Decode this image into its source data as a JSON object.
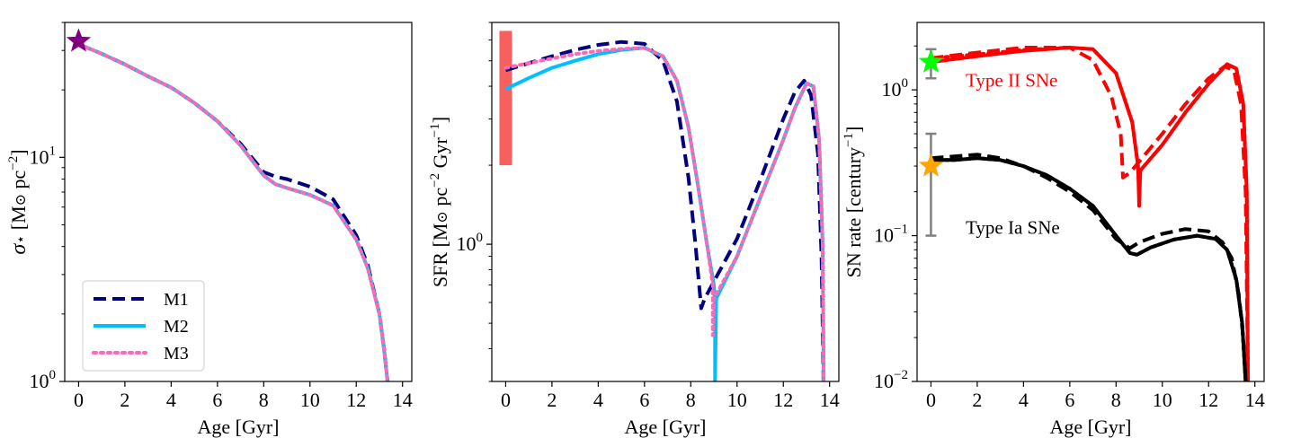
{
  "chart_data": [
    {
      "type": "line",
      "panel": "stellar-surface-density",
      "xlabel": "Age [Gyr]",
      "ylabel_parts": [
        "σ",
        "⋆",
        " [M",
        "⊙",
        " pc",
        "−2",
        "]"
      ],
      "xlim": [
        -0.6,
        14.4
      ],
      "ylim": [
        1,
        40
      ],
      "yscale": "log",
      "xticks": [
        0,
        2,
        4,
        6,
        8,
        10,
        12,
        14
      ],
      "yticks": [
        {
          "value": 1,
          "base": "10",
          "exp": "0"
        },
        {
          "value": 10,
          "base": "10",
          "exp": "1"
        }
      ],
      "legend": {
        "placement": "lower-left",
        "entries": [
          "M1",
          "M2",
          "M3"
        ]
      },
      "series": [
        {
          "name": "M1",
          "color": "#00007f",
          "style": "dashed",
          "x": [
            0,
            1,
            2,
            3,
            4,
            5,
            6,
            7,
            8,
            8.5,
            9,
            10,
            11,
            12,
            12.5,
            13,
            13.2,
            13.4
          ],
          "y": [
            32,
            29,
            26,
            23,
            20.5,
            17.5,
            14.5,
            11.5,
            8.6,
            8.2,
            8.0,
            7.4,
            6.5,
            4.5,
            3.3,
            2.0,
            1.4,
            0.9
          ]
        },
        {
          "name": "M2",
          "color": "#00bfff",
          "style": "solid",
          "x": [
            0,
            1,
            2,
            3,
            4,
            5,
            6,
            7,
            8,
            8.5,
            9,
            10,
            11,
            12,
            12.5,
            13,
            13.2,
            13.4
          ],
          "y": [
            32,
            29,
            26,
            23,
            20.5,
            17.5,
            14.5,
            11.3,
            8.3,
            7.6,
            7.3,
            6.8,
            6.1,
            4.3,
            3.2,
            2.0,
            1.4,
            0.9
          ]
        },
        {
          "name": "M3",
          "color": "#ff69b4",
          "style": "dotted",
          "x": [
            0,
            1,
            2,
            3,
            4,
            5,
            6,
            7,
            8,
            8.5,
            9,
            10,
            11,
            12,
            12.5,
            13,
            13.2,
            13.4
          ],
          "y": [
            32,
            29,
            26,
            23,
            20.5,
            17.5,
            14.5,
            11.3,
            8.3,
            7.6,
            7.3,
            6.8,
            6.1,
            4.3,
            3.2,
            2.0,
            1.4,
            0.9
          ]
        }
      ],
      "markers": [
        {
          "type": "star",
          "x": 0,
          "y": 33,
          "color": "#800080"
        }
      ]
    },
    {
      "type": "line",
      "panel": "star-formation-rate",
      "xlabel": "Age [Gyr]",
      "ylabel_parts": [
        "SFR [M",
        "⊙",
        " pc",
        "−2",
        " Gyr",
        "−1",
        "]"
      ],
      "xlim": [
        -0.6,
        14.4
      ],
      "ylim": [
        0.3,
        7.0
      ],
      "yscale": "log",
      "xticks": [
        0,
        2,
        4,
        6,
        8,
        10,
        12,
        14
      ],
      "yticks": [
        {
          "value": 1,
          "base": "10",
          "exp": "0"
        }
      ],
      "series": [
        {
          "name": "M1",
          "color": "#00007f",
          "style": "dashed",
          "x": [
            0,
            1,
            2,
            3,
            4,
            5,
            6,
            6.8,
            7.4,
            7.9,
            8.2,
            8.45,
            8.6,
            10,
            11,
            12,
            12.5,
            12.9,
            13.2,
            13.5,
            13.65,
            13.75
          ],
          "y": [
            4.6,
            4.9,
            5.2,
            5.5,
            5.75,
            5.9,
            5.8,
            5.0,
            3.5,
            1.8,
            1.0,
            0.57,
            0.62,
            1.05,
            1.75,
            3.0,
            3.8,
            4.2,
            3.7,
            2.2,
            0.9,
            0.25
          ]
        },
        {
          "name": "M2",
          "color": "#00bfff",
          "style": "solid",
          "x": [
            0,
            1,
            2,
            3,
            4,
            5,
            6,
            6.8,
            7.4,
            7.9,
            8.3,
            8.7,
            9.0,
            9.05,
            9.05,
            9.1,
            10,
            11,
            12,
            12.5,
            13,
            13.3,
            13.55,
            13.7,
            13.75
          ],
          "y": [
            3.9,
            4.3,
            4.7,
            5.0,
            5.3,
            5.5,
            5.6,
            5.2,
            4.2,
            2.8,
            1.7,
            1.0,
            0.7,
            0.6,
            0.3,
            0.62,
            0.9,
            1.5,
            2.5,
            3.3,
            4.1,
            4.0,
            2.5,
            1.0,
            0.25
          ]
        },
        {
          "name": "M3",
          "color": "#ff69b4",
          "style": "dotted",
          "x": [
            0,
            1,
            2,
            3,
            4,
            5,
            6,
            6.8,
            7.4,
            7.9,
            8.3,
            8.7,
            8.95,
            8.95,
            9.0,
            10,
            11,
            12,
            12.5,
            13,
            13.3,
            13.55,
            13.7,
            13.75
          ],
          "y": [
            4.7,
            4.9,
            5.1,
            5.3,
            5.45,
            5.55,
            5.6,
            5.2,
            4.2,
            2.8,
            1.7,
            1.0,
            0.7,
            0.45,
            0.62,
            0.9,
            1.5,
            2.5,
            3.3,
            4.1,
            4.0,
            2.5,
            1.0,
            0.25
          ]
        }
      ],
      "bands": [
        {
          "x": 0,
          "y_low": 2.0,
          "y_high": 6.5,
          "color": "#f86060"
        }
      ]
    },
    {
      "type": "line",
      "panel": "supernova-rate",
      "xlabel": "Age [Gyr]",
      "ylabel_parts": [
        "SN rate [century",
        "−1",
        "]"
      ],
      "xlim": [
        -0.6,
        14.4
      ],
      "ylim": [
        0.01,
        2.9
      ],
      "yscale": "log",
      "xticks": [
        0,
        2,
        4,
        6,
        8,
        10,
        12,
        14
      ],
      "yticks": [
        {
          "value": 0.01,
          "base": "10",
          "exp": "−2"
        },
        {
          "value": 0.1,
          "base": "10",
          "exp": "−1"
        },
        {
          "value": 1,
          "base": "10",
          "exp": "0"
        }
      ],
      "annotations": [
        {
          "text": "Type II SNe",
          "x": 1.5,
          "y": 1.05,
          "color": "#ff0000"
        },
        {
          "text": "Type Ia SNe",
          "x": 1.5,
          "y": 0.103,
          "color": "#000000"
        }
      ],
      "series": [
        {
          "name": "Type II M1",
          "color": "#ff0000",
          "style": "dashed",
          "x": [
            0,
            2,
            4,
            6,
            7,
            7.8,
            8.2,
            8.3,
            8.6,
            10,
            11,
            12,
            12.7,
            13.1,
            13.4,
            13.6,
            13.7
          ],
          "y": [
            1.65,
            1.8,
            1.95,
            1.95,
            1.6,
            0.9,
            0.5,
            0.25,
            0.27,
            0.5,
            0.8,
            1.2,
            1.45,
            1.35,
            0.8,
            0.2,
            0.01
          ]
        },
        {
          "name": "Type II M2",
          "color": "#ff0000",
          "style": "solid",
          "x": [
            0,
            2,
            4,
            6,
            7,
            8,
            8.7,
            8.95,
            9.0,
            9.05,
            10,
            11,
            12,
            12.8,
            13.2,
            13.5,
            13.65,
            13.7
          ],
          "y": [
            1.55,
            1.7,
            1.85,
            1.95,
            1.9,
            1.3,
            0.6,
            0.3,
            0.16,
            0.28,
            0.42,
            0.7,
            1.1,
            1.5,
            1.4,
            0.8,
            0.2,
            0.01
          ]
        },
        {
          "name": "Type II M3",
          "color": "#ff0000",
          "style": "dotted",
          "x": [
            0,
            2,
            4,
            6,
            7,
            8,
            8.7,
            8.95,
            9.0,
            9.05,
            10,
            11,
            12,
            12.8,
            13.2,
            13.5,
            13.65,
            13.7
          ],
          "y": [
            1.65,
            1.75,
            1.88,
            1.95,
            1.9,
            1.3,
            0.6,
            0.3,
            0.2,
            0.28,
            0.42,
            0.7,
            1.1,
            1.5,
            1.4,
            0.8,
            0.2,
            0.01
          ]
        },
        {
          "name": "Type Ia M1",
          "color": "#000000",
          "style": "dashed",
          "x": [
            0,
            1,
            2,
            3,
            4,
            5,
            6,
            7,
            8,
            8.6,
            9,
            10,
            11,
            12,
            12.6,
            13.0,
            13.3,
            13.5,
            13.6
          ],
          "y": [
            0.34,
            0.35,
            0.36,
            0.34,
            0.3,
            0.25,
            0.2,
            0.15,
            0.095,
            0.082,
            0.09,
            0.103,
            0.111,
            0.107,
            0.09,
            0.07,
            0.04,
            0.02,
            0.01
          ]
        },
        {
          "name": "Type Ia M2",
          "color": "#000000",
          "style": "solid",
          "x": [
            0,
            1,
            2,
            3,
            4,
            5,
            6,
            7,
            8,
            8.6,
            8.9,
            9.5,
            10.5,
            11.5,
            12.3,
            12.8,
            13.2,
            13.45,
            13.6
          ],
          "y": [
            0.33,
            0.33,
            0.34,
            0.33,
            0.3,
            0.26,
            0.21,
            0.16,
            0.1,
            0.076,
            0.074,
            0.083,
            0.094,
            0.1,
            0.095,
            0.08,
            0.05,
            0.025,
            0.01
          ]
        },
        {
          "name": "Type Ia M3",
          "color": "#000000",
          "style": "dotted",
          "x": [
            0,
            1,
            2,
            3,
            4,
            5,
            6,
            7,
            8,
            8.6,
            8.9,
            9.5,
            10.5,
            11.5,
            12.3,
            12.8,
            13.2,
            13.45,
            13.6
          ],
          "y": [
            0.33,
            0.33,
            0.34,
            0.33,
            0.3,
            0.26,
            0.21,
            0.16,
            0.1,
            0.076,
            0.074,
            0.083,
            0.094,
            0.1,
            0.095,
            0.08,
            0.05,
            0.025,
            0.01
          ]
        }
      ],
      "errorbars": [
        {
          "x": 0,
          "y_low": 1.2,
          "y_high": 1.9,
          "color": "#808080"
        },
        {
          "x": 0,
          "y_low": 0.1,
          "y_high": 0.5,
          "color": "#808080"
        }
      ],
      "markers": [
        {
          "type": "star",
          "x": 0,
          "y": 1.55,
          "color": "#00ff00"
        },
        {
          "type": "star",
          "x": 0,
          "y": 0.3,
          "color": "#ffa500"
        }
      ]
    }
  ]
}
